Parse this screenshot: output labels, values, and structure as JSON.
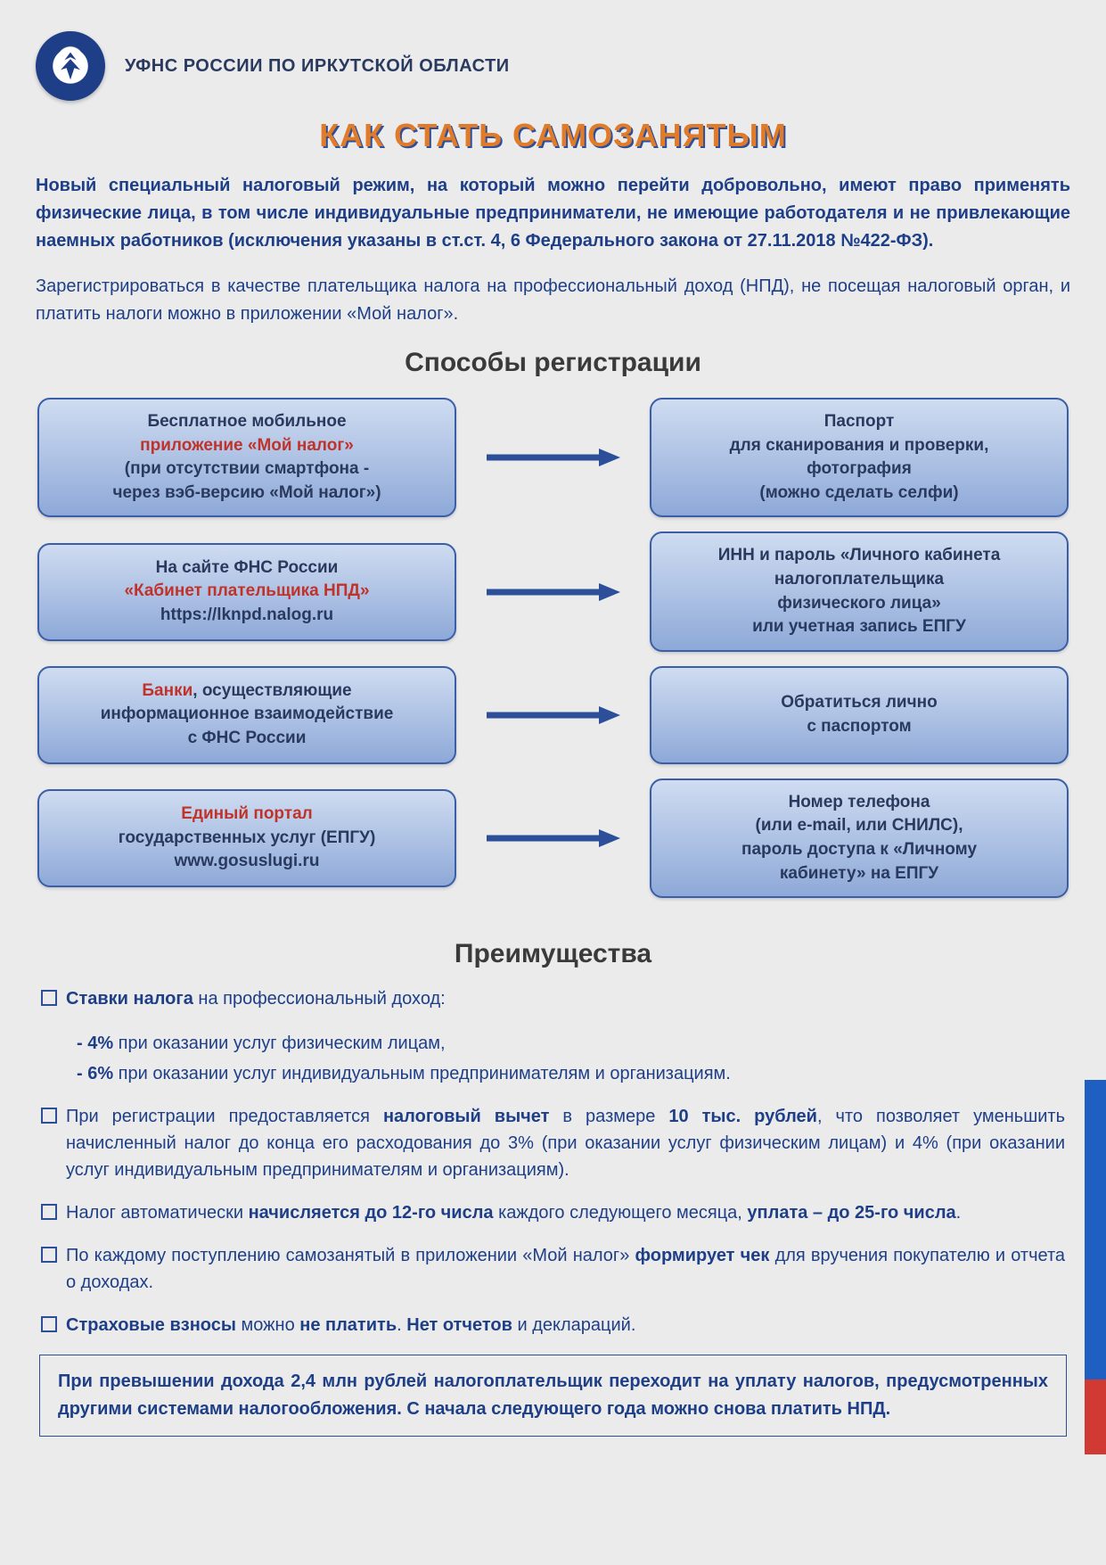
{
  "colors": {
    "page_bg": "#ebebec",
    "navy": "#1e3f87",
    "title_orange": "#e07b2a",
    "title_shadow": "#2d4f9a",
    "red": "#c0332b",
    "box_grad_top": "#cfdcf1",
    "box_grad_bottom": "#8ea9d8",
    "box_border": "#3a5fa8",
    "box_text": "#2a3a5e",
    "arrow": "#2d4f9a",
    "section_text": "#3a3a3a",
    "bullet_border": "#2d4f9a",
    "stripe_blue": "#1e5fc1",
    "stripe_red": "#d13a32"
  },
  "header": {
    "org": "УФНС РОССИИ ПО ИРКУТСКОЙ ОБЛАСТИ"
  },
  "title": "КАК СТАТЬ САМОЗАНЯТЫМ",
  "intro1": "Новый специальный налоговый режим, на который можно перейти добровольно, имеют право применять физические лица, в том числе индивидуальные предприниматели, не имеющие работодателя и не привлекающие наемных работников (исключения указаны в ст.ст. 4, 6 Федерального закона от 27.11.2018 №422-ФЗ).",
  "intro2": "Зарегистрироваться в качестве плательщика налога на профессиональный доход (НПД), не посещая налоговый орган, и платить налоги можно в приложении «Мой налог».",
  "section_reg": "Способы регистрации",
  "flow": [
    {
      "left": {
        "l1": "Бесплатное  мобильное",
        "l2_red": "приложение «Мой налог»",
        "l3": "(при отсутствии смартфона -",
        "l4": "через вэб-версию «Мой налог»)"
      },
      "right": {
        "l1": "Паспорт",
        "l2": "для сканирования и проверки,",
        "l3": "фотография",
        "l4": "(можно сделать селфи)"
      }
    },
    {
      "left": {
        "l1": "На сайте ФНС России",
        "l2_red": "«Кабинет плательщика НПД»",
        "l3": "https://lknpd.nalog.ru"
      },
      "right": {
        "l1": "ИНН и пароль «Личного кабинета",
        "l2": "налогоплательщика",
        "l3": "физического лица»",
        "l4": "или учетная запись ЕПГУ"
      }
    },
    {
      "left": {
        "l1_red": "Банки",
        "l1_tail": ",  осуществляющие",
        "l2": "информационное взаимодействие",
        "l3": "с ФНС России"
      },
      "right": {
        "l1": "Обратиться  лично",
        "l2": "с паспортом"
      }
    },
    {
      "left": {
        "l1_red": "Единый портал",
        "l2": "государственных услуг (ЕПГУ)",
        "l3": "www.gosuslugi.ru"
      },
      "right": {
        "l1": "Номер  телефона",
        "l2": "(или e-mail, или СНИЛС),",
        "l3": "пароль доступа к «Личному",
        "l4": "кабинету» на ЕПГУ"
      }
    }
  ],
  "section_adv": "Преимущества",
  "adv": {
    "i1_lead": "Ставки налога",
    "i1_tail": " на профессиональный доход:",
    "sub1": "4% при оказании услуг физическим лицам,",
    "sub2": "6% при оказании услуг индивидуальным предпринимателям и организациям.",
    "i2_p1": "При регистрации предоставляется ",
    "i2_s1": "налоговый вычет",
    "i2_p2": " в размере ",
    "i2_s2": "10 тыс. рублей",
    "i2_p3": ", что позволяет уменьшить начисленный налог до конца его расходования до 3% (при оказании услуг физическим лицам) и 4% (при оказании услуг индивидуальным предпринимателям и организациям).",
    "i3_p1": "Налог  автоматически ",
    "i3_s1": "начисляется до 12-го числа",
    "i3_p2": " каждого следующего месяца, ",
    "i3_s2": "уплата – до  25-го числа",
    "i3_p3": ".",
    "i4_p1": "По каждому поступлению самозанятый в приложении «Мой налог» ",
    "i4_s1": "формирует чек",
    "i4_p2": " для вручения покупателю и отчета о доходах.",
    "i5_p1": "Страховые  взносы",
    "i5_p2": " можно ",
    "i5_s1": "не платить",
    "i5_p3": ". ",
    "i5_s2": "Нет отчетов",
    "i5_p4": " и деклараций."
  },
  "footer": "При превышении дохода 2,4 млн рублей налогоплательщик переходит на уплату налогов, предусмотренных другими системами налогообложения. С начала следующего года можно снова платить НПД."
}
